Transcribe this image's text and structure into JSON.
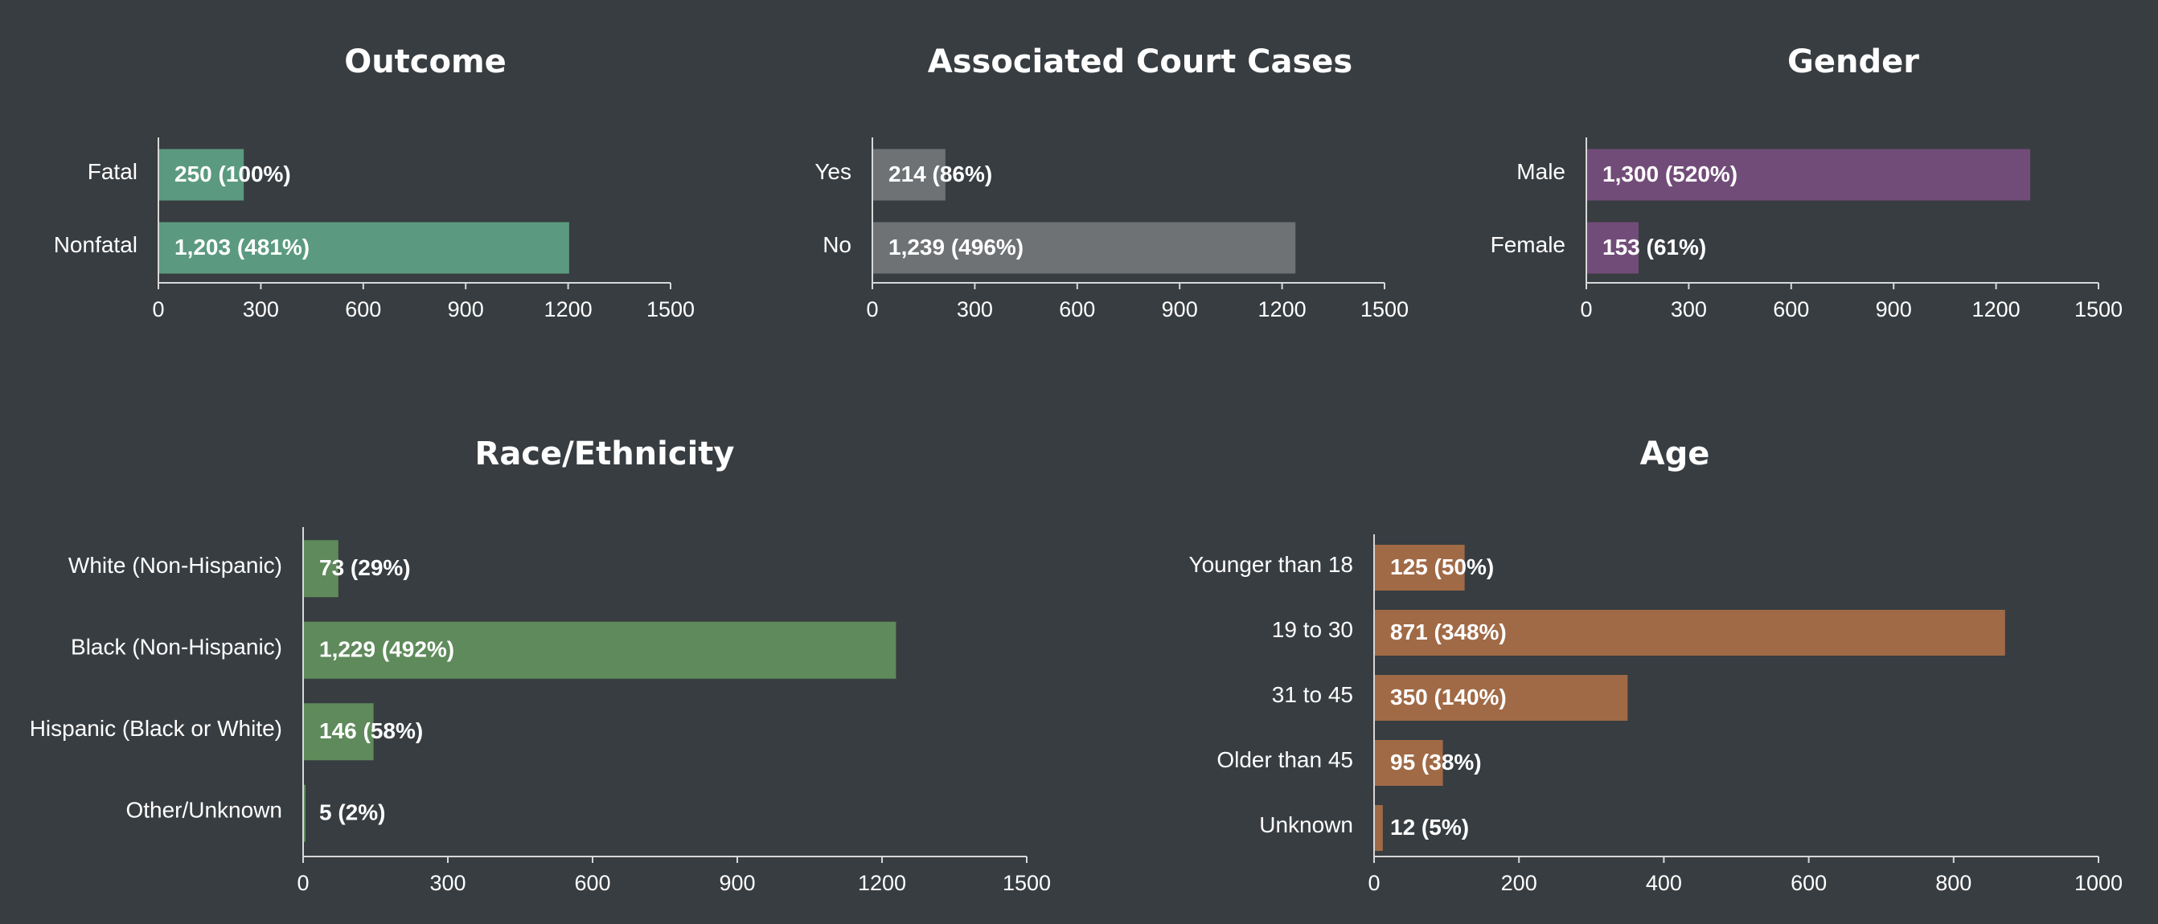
{
  "page": {
    "background": "#383d41",
    "text_color": "#ffffff",
    "axis_color": "#d8d8d8"
  },
  "chart_data": [
    {
      "id": "outcome",
      "type": "bar",
      "orientation": "horizontal",
      "title": "Outcome",
      "color": "#5b9a80",
      "categories": [
        "Fatal",
        "Nonfatal"
      ],
      "values": [
        250,
        1203
      ],
      "data_labels": [
        "250 (100%)",
        "1,203 (481%)"
      ],
      "xlim": [
        0,
        1500
      ],
      "xticks": [
        "0",
        "300",
        "600",
        "900",
        "1200",
        "1500"
      ],
      "grid": false
    },
    {
      "id": "court-cases",
      "type": "bar",
      "orientation": "horizontal",
      "title": "Associated Court Cases",
      "color": "#6e7275",
      "categories": [
        "Yes",
        "No"
      ],
      "values": [
        214,
        1239
      ],
      "data_labels": [
        "214 (86%)",
        "1,239 (496%)"
      ],
      "xlim": [
        0,
        1500
      ],
      "xticks": [
        "0",
        "300",
        "600",
        "900",
        "1200",
        "1500"
      ],
      "grid": false
    },
    {
      "id": "gender",
      "type": "bar",
      "orientation": "horizontal",
      "title": "Gender",
      "color": "#724c78",
      "categories": [
        "Male",
        "Female"
      ],
      "values": [
        1300,
        153
      ],
      "data_labels": [
        "1,300 (520%)",
        "153 (61%)"
      ],
      "xlim": [
        0,
        1500
      ],
      "xticks": [
        "0",
        "300",
        "600",
        "900",
        "1200",
        "1500"
      ],
      "grid": false
    },
    {
      "id": "race",
      "type": "bar",
      "orientation": "horizontal",
      "title": "Race/Ethnicity",
      "color": "#5f8a5b",
      "categories": [
        "White (Non-Hispanic)",
        "Black (Non-Hispanic)",
        "Hispanic (Black or White)",
        "Other/Unknown"
      ],
      "values": [
        73,
        1229,
        146,
        5
      ],
      "data_labels": [
        "73 (29%)",
        "1,229 (492%)",
        "146 (58%)",
        "5 (2%)"
      ],
      "xlim": [
        0,
        1500
      ],
      "xticks": [
        "0",
        "300",
        "600",
        "900",
        "1200",
        "1500"
      ],
      "grid": false
    },
    {
      "id": "age",
      "type": "bar",
      "orientation": "horizontal",
      "title": "Age",
      "color": "#a06a46",
      "categories": [
        "Younger than 18",
        "19 to 30",
        "31 to 45",
        "Older than 45",
        "Unknown"
      ],
      "values": [
        125,
        871,
        350,
        95,
        12
      ],
      "data_labels": [
        "125 (50%)",
        "871 (348%)",
        "350 (140%)",
        "95 (38%)",
        "12 (5%)"
      ],
      "xlim": [
        0,
        1000
      ],
      "xticks": [
        "0",
        "200",
        "400",
        "600",
        "800",
        "1000"
      ],
      "grid": false
    }
  ]
}
